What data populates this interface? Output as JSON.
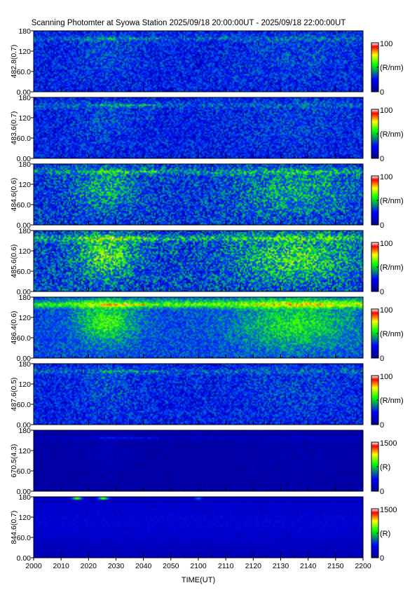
{
  "title": "Scanning Photomter at Syowa Station 2025/09/18 20:00:00UT - 2025/09/18 22:00:00UT",
  "chart_data": {
    "type": "heatmap",
    "xlabel": "TIME(UT)",
    "x_ticks": [
      "2000",
      "2010",
      "2020",
      "2030",
      "2040",
      "2050",
      "2100",
      "2110",
      "2120",
      "2130",
      "2140",
      "2150",
      "2200"
    ],
    "y_ticks": [
      "0.00",
      "60.0",
      "120",
      "180"
    ],
    "ylim": [
      0,
      180
    ],
    "colormap": [
      "#000080",
      "#0000ff",
      "#00ff00",
      "#ffff00",
      "#ff0000",
      "#ffffff"
    ],
    "panels": [
      {
        "ylabel": "482.8(0.7)",
        "colorbar_max": "100",
        "colorbar_min": "0",
        "unit": "(R/nm)",
        "intensity": "low"
      },
      {
        "ylabel": "483.6(0.7)",
        "colorbar_max": "100",
        "colorbar_min": "0",
        "unit": "(R/nm)",
        "intensity": "low"
      },
      {
        "ylabel": "484.6(0.6)",
        "colorbar_max": "100",
        "colorbar_min": "0",
        "unit": "(R/nm)",
        "intensity": "medium"
      },
      {
        "ylabel": "485.6(0.6)",
        "colorbar_max": "100",
        "colorbar_min": "0",
        "unit": "(R/nm)",
        "intensity": "medium-high"
      },
      {
        "ylabel": "486.4(0.6)",
        "colorbar_max": "100",
        "colorbar_min": "0",
        "unit": "(R/nm)",
        "intensity": "high"
      },
      {
        "ylabel": "487.6(0.5)",
        "colorbar_max": "100",
        "colorbar_min": "0",
        "unit": "(R/nm)",
        "intensity": "low"
      },
      {
        "ylabel": "670.5(4.3)",
        "colorbar_max": "1500",
        "colorbar_min": "0",
        "unit": "(R)",
        "intensity": "very-low"
      },
      {
        "ylabel": "844.6(0.7)",
        "colorbar_max": "1500",
        "colorbar_min": "0",
        "unit": "(R)",
        "intensity": "low"
      }
    ]
  }
}
